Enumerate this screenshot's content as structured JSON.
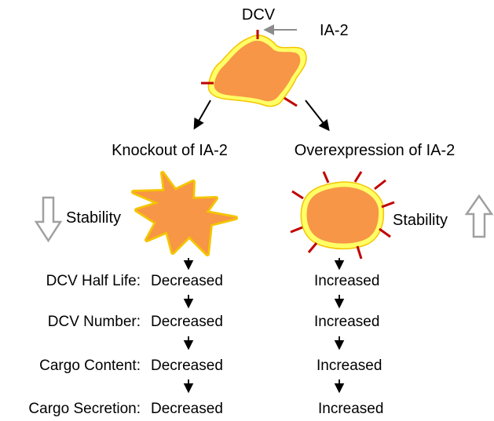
{
  "colors": {
    "vesicle_fill": "#F79646",
    "vesicle_halo": "#FFFF33",
    "vesicle_outline": "#F5C400",
    "ia2_marker": "#C00000",
    "callout_arrow": "#8C8C8C",
    "stability_arrow": "#A0A0A0",
    "text": "#000000"
  },
  "top": {
    "vesicle_label": "DCV",
    "protein_label": "IA-2"
  },
  "branches": {
    "left_title": "Knockout of IA-2",
    "right_title": "Overexpression of IA-2"
  },
  "stability": {
    "left_label": "Stability",
    "left_direction": "down",
    "right_label": "Stability",
    "right_direction": "up"
  },
  "rows": [
    {
      "label": "DCV Half Life:",
      "knockout": "Decreased",
      "overexpression": "Increased"
    },
    {
      "label": "DCV Number:",
      "knockout": "Decreased",
      "overexpression": "Increased"
    },
    {
      "label": "Cargo Content:",
      "knockout": "Decreased",
      "overexpression": "Increased"
    },
    {
      "label": "Cargo Secretion:",
      "knockout": "Decreased",
      "overexpression": "Increased"
    }
  ],
  "icons": {
    "branch_arrows": "diagonal-arrow-icon",
    "flow_arrows": "down-arrow-icon",
    "stability_down": "hollow-down-arrow-icon",
    "stability_up": "hollow-up-arrow-icon"
  }
}
